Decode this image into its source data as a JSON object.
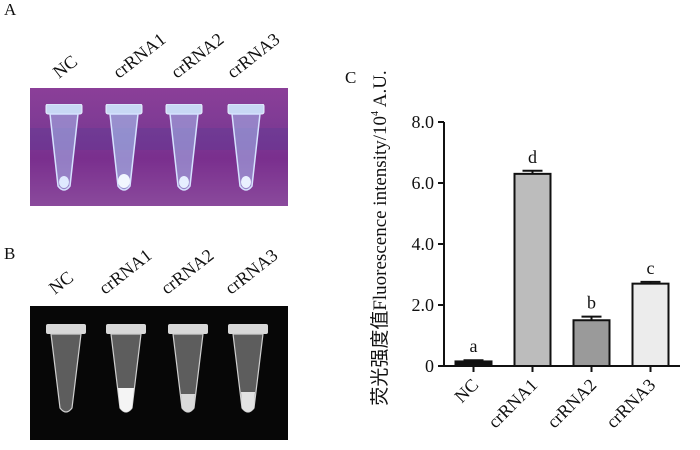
{
  "panels": {
    "a": {
      "letter": "A",
      "lanes": [
        "NC",
        "crRNA1",
        "crRNA2",
        "crRNA3"
      ]
    },
    "b": {
      "letter": "B",
      "lanes": [
        "NC",
        "crRNA1",
        "crRNA2",
        "crRNA3"
      ]
    },
    "c": {
      "letter": "C"
    }
  },
  "chart_data": {
    "type": "bar",
    "categories": [
      "NC",
      "crRNA1",
      "crRNA2",
      "crRNA3"
    ],
    "values": [
      0.15,
      6.3,
      1.5,
      2.7
    ],
    "errors": [
      0.04,
      0.1,
      0.12,
      0.06
    ],
    "significance_letters": [
      "a",
      "d",
      "b",
      "c"
    ],
    "bar_colors": [
      "#111111",
      "#bcbcbc",
      "#9a9a9a",
      "#ececec"
    ],
    "ylabel_cn": "荧光强度值",
    "ylabel_en": "Fluorescence intensity/10",
    "ylabel_sup": "4",
    "ylabel_unit": " A.U.",
    "yticks": [
      "0",
      "2.0",
      "4.0",
      "6.0",
      "8.0"
    ],
    "ylim": [
      0,
      8
    ],
    "grid": false
  }
}
